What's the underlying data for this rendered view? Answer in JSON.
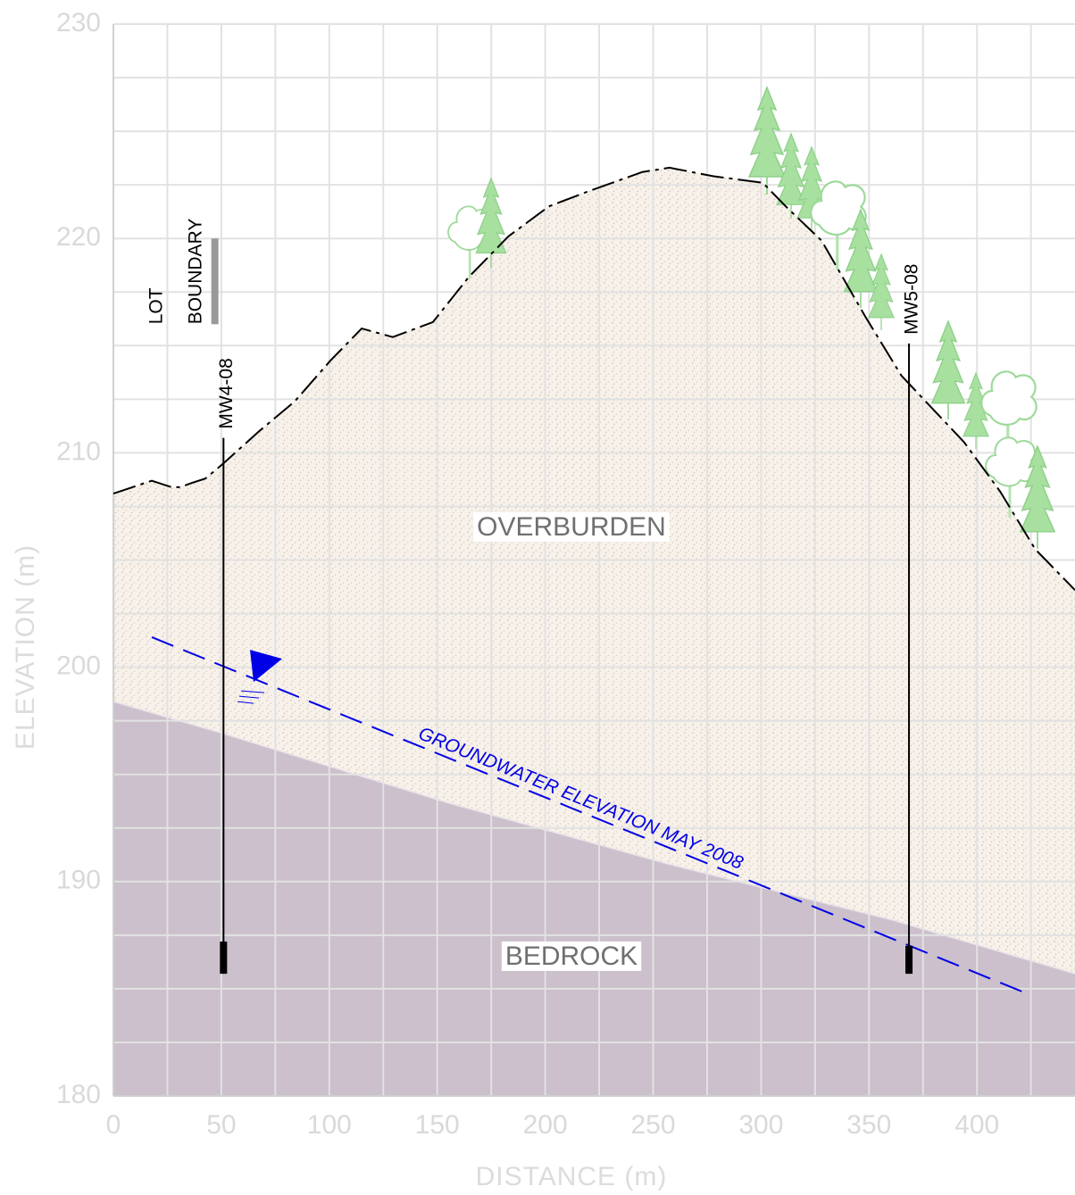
{
  "chart_data": {
    "type": "cross-section",
    "xlabel": "DISTANCE (m)",
    "ylabel": "ELEVATION (m)",
    "xlim": [
      0,
      445.4
    ],
    "ylim": [
      180,
      230
    ],
    "xticks": [
      0,
      50,
      100,
      150,
      200,
      250,
      300,
      350,
      400
    ],
    "yticks": [
      180,
      190,
      200,
      210,
      220,
      230
    ],
    "xgrid_minor": [
      25,
      75,
      125,
      175,
      225,
      275,
      325,
      375,
      425
    ],
    "ygrid_minor": [
      182.5,
      185,
      187.5,
      192.5,
      195,
      197.5,
      202.5,
      205,
      207.5,
      212.5,
      215,
      217.5,
      222.5,
      225,
      227.5
    ],
    "grid": true,
    "units": [
      {
        "name": "OVERBURDEN",
        "color": "#f6f1ea"
      },
      {
        "name": "BEDROCK",
        "color": "#cbc0cb"
      }
    ],
    "ground_surface": {
      "color": "#000000",
      "x": [
        0,
        17.8,
        26.9,
        31,
        36.4,
        42.6,
        50.9,
        67.4,
        84,
        100.5,
        115,
        129.4,
        148,
        164.6,
        183,
        201.8,
        220,
        245,
        257.6,
        278,
        300.8,
        311.4,
        328,
        348.6,
        365,
        394,
        410.7,
        427,
        445.4
      ],
      "y": [
        208.1,
        208.7,
        208.4,
        208.4,
        208.6,
        208.8,
        209.5,
        211.0,
        212.4,
        214.3,
        215.8,
        215.4,
        216.1,
        218.2,
        220.1,
        221.5,
        222.2,
        223.1,
        223.3,
        222.9,
        222.6,
        221.5,
        219.9,
        216.3,
        213.6,
        210.5,
        208.2,
        205.5,
        203.6
      ]
    },
    "bedrock_surface": {
      "x": [
        0,
        50.9,
        154,
        257.6,
        361,
        445.4
      ],
      "y": [
        198.4,
        196.9,
        193.7,
        190.8,
        188.2,
        185.7
      ]
    },
    "groundwater": {
      "name": "GROUNDWATER ELEVATION MAY 2008",
      "color": "#0000e6",
      "x": [
        17.8,
        425
      ],
      "y": [
        201.4,
        184.7
      ]
    },
    "wells": [
      {
        "name": "MW4-08",
        "x": 51,
        "top": 210.7,
        "bottom": 185.7,
        "screen_top": 187.2
      },
      {
        "name": "MW5-08",
        "x": 368.5,
        "top": 215.1,
        "bottom": 185.7,
        "screen_top": 187.0
      }
    ],
    "lot_boundary": {
      "label": [
        "LOT",
        "BOUNDARY"
      ],
      "x": 47,
      "top": 220,
      "bottom": 216,
      "color": "#999999"
    }
  }
}
